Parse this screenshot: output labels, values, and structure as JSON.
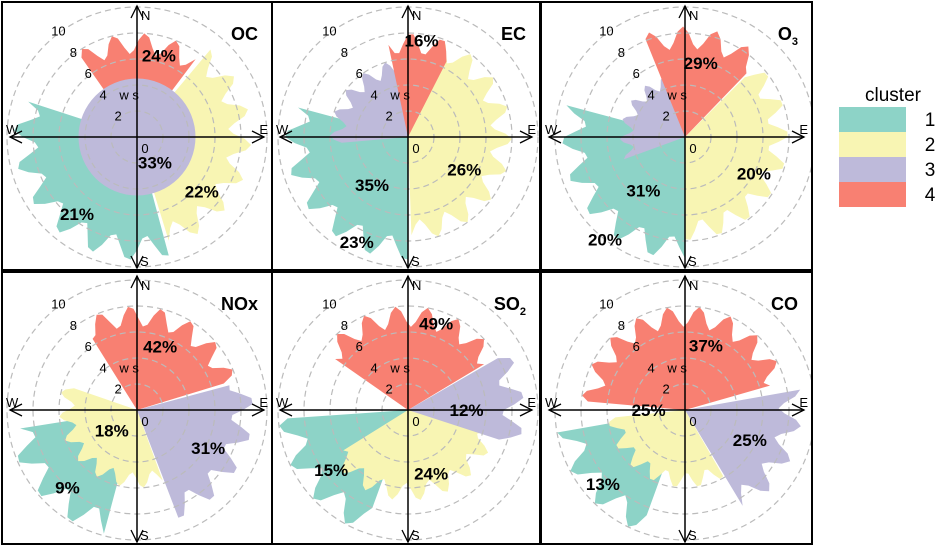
{
  "chart_data": {
    "type": "polar cluster plot",
    "radial_axis_label": "ws",
    "radial_ticks": [
      "0",
      "2",
      "4",
      "6",
      "8",
      "10"
    ],
    "direction_labels": [
      "N",
      "E",
      "S",
      "W"
    ],
    "legend": {
      "title": "cluster",
      "placement": "right",
      "entries": [
        "1",
        "2",
        "3",
        "4"
      ],
      "colors": [
        "#8dd3c7",
        "#f8f5b3",
        "#bebada",
        "#f88072"
      ]
    },
    "panels": [
      {
        "title": "OC",
        "sub": "",
        "percents": {
          "1": "21%",
          "2": "22%",
          "3": "33%",
          "4": "24%"
        }
      },
      {
        "title": "EC",
        "sub": "",
        "percents": {
          "1": "23%",
          "2": "26%",
          "3": "35%",
          "4": "16%"
        }
      },
      {
        "title": "O",
        "sub": "3",
        "percents": {
          "1": "20%",
          "2": "20%",
          "3": "31%",
          "4": "29%"
        }
      },
      {
        "title": "NOx",
        "sub": "",
        "percents": {
          "1": "9%",
          "2": "18%",
          "3": "31%",
          "4": "42%"
        }
      },
      {
        "title": "SO",
        "sub": "2",
        "percents": {
          "1": "15%",
          "2": "24%",
          "3": "12%",
          "4": "49%"
        }
      },
      {
        "title": "CO",
        "sub": "",
        "percents": {
          "1": "13%",
          "2": "25%",
          "3": "25%",
          "4": "37%"
        }
      }
    ]
  }
}
